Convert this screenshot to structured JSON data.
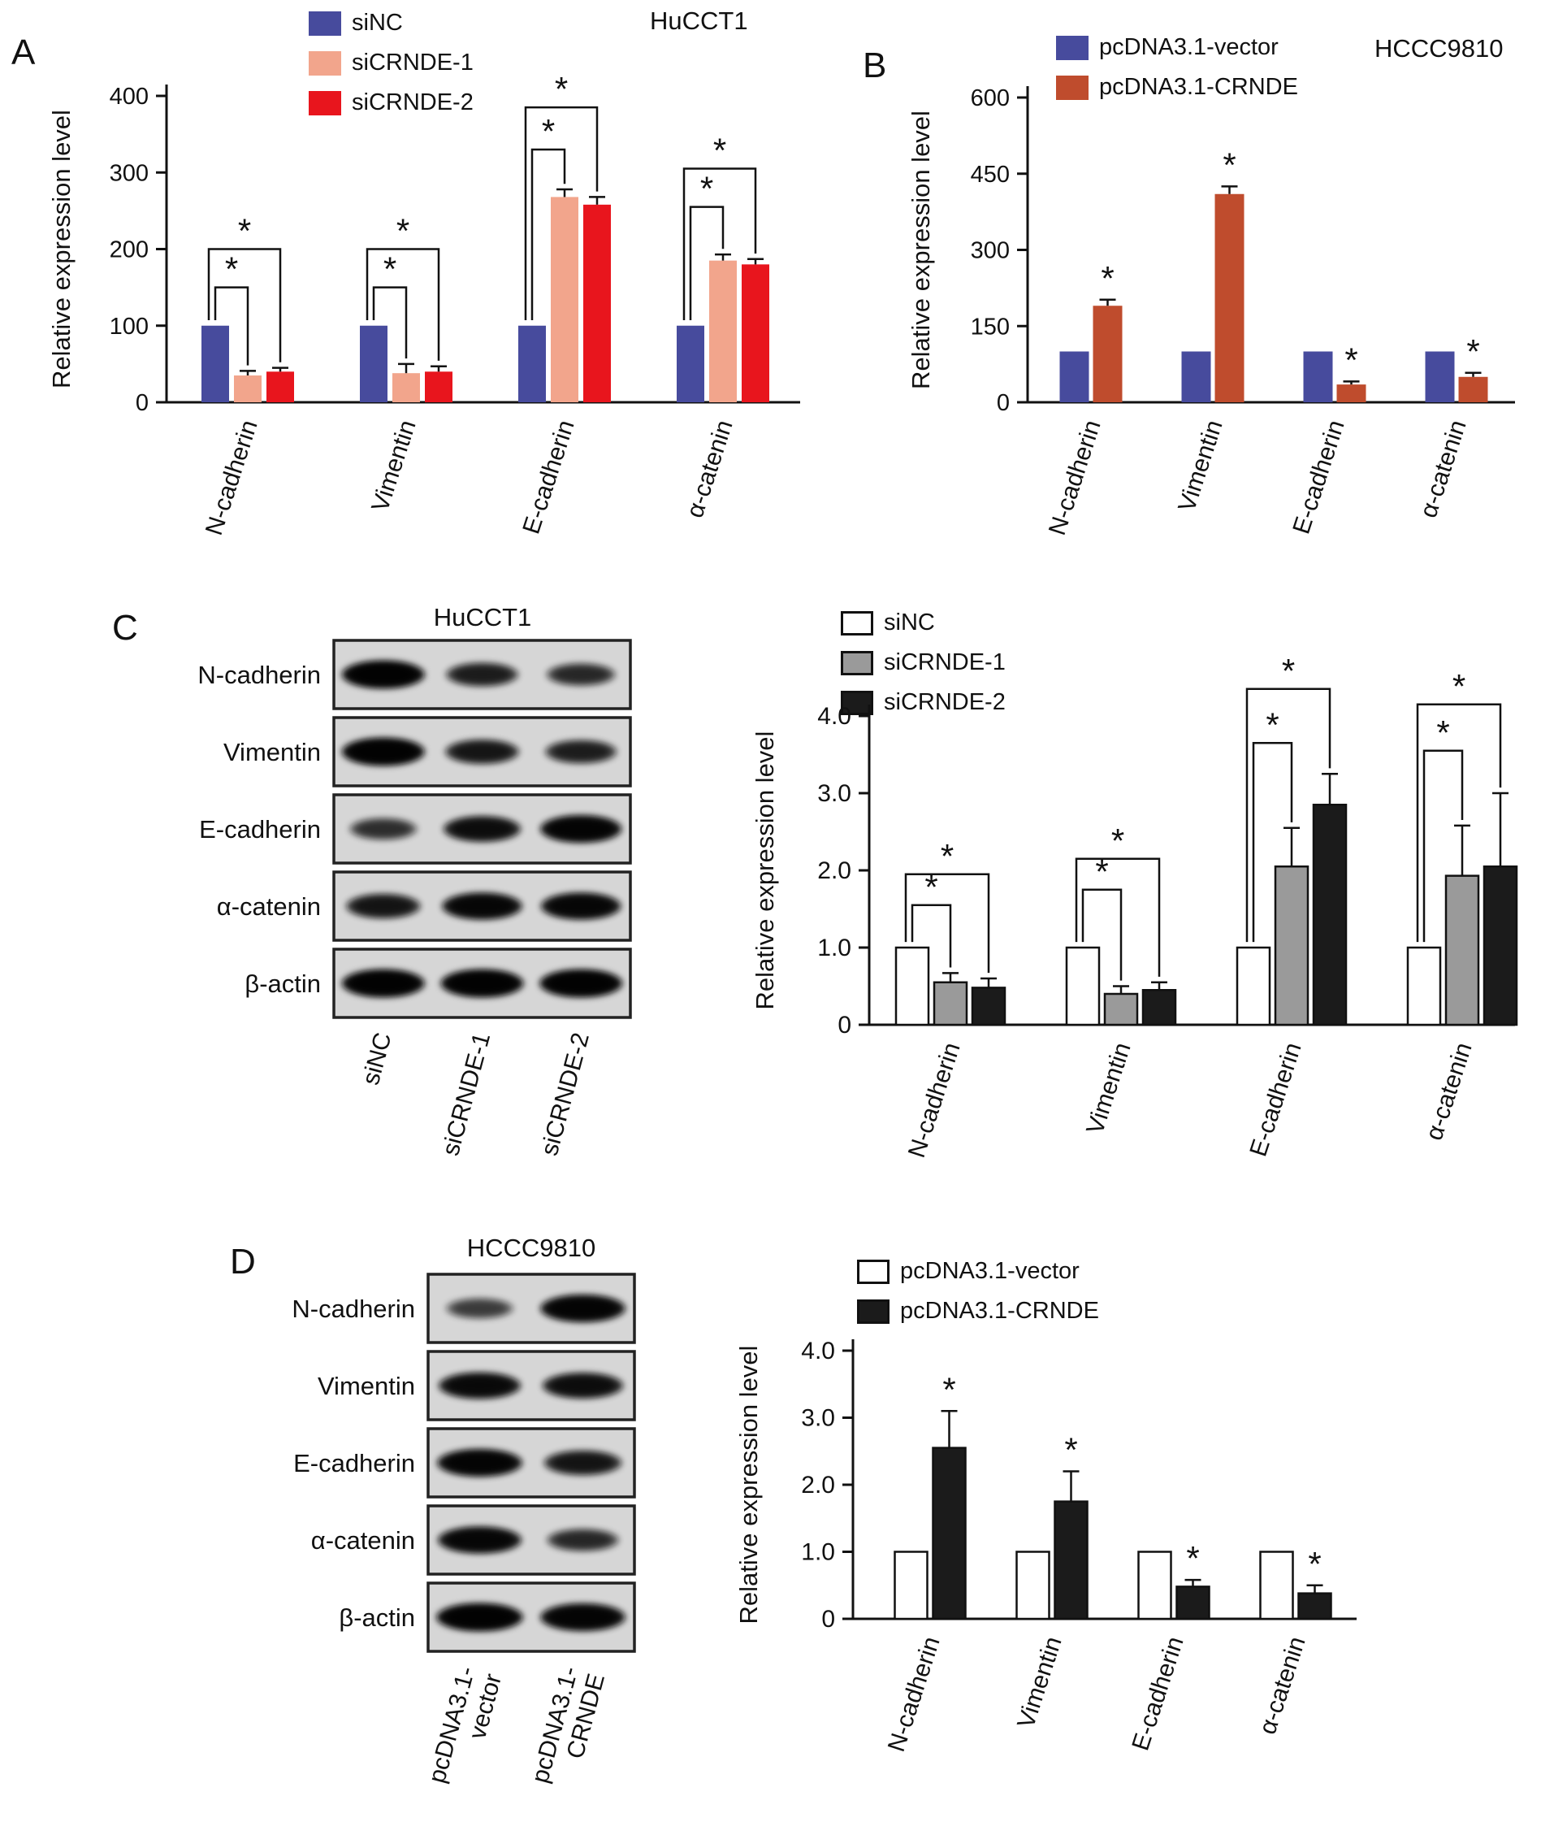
{
  "figure": {
    "panels": {
      "A": {
        "letter": "A"
      },
      "B": {
        "letter": "B"
      },
      "C": {
        "letter": "C"
      },
      "D": {
        "letter": "D"
      }
    }
  },
  "chart_data": [
    {
      "panel": "A",
      "type": "bar",
      "title": "HuCCT1",
      "ylabel": "Relative expression level",
      "ylim": [
        0,
        400
      ],
      "yticks": [
        0,
        100,
        200,
        300,
        400
      ],
      "yticklabels": [
        "0",
        "100",
        "200",
        "300",
        "400"
      ],
      "categories": [
        "N-cadherin",
        "Vimentin",
        "E-cadherin",
        "α-catenin"
      ],
      "grid": false,
      "legend_position": "top-left",
      "bar_outline": false,
      "series": [
        {
          "name": "siNC",
          "color": "#474b9d",
          "values": [
            100,
            100,
            100,
            100
          ],
          "errors": [
            0,
            0,
            0,
            0
          ]
        },
        {
          "name": "siCRNDE-1",
          "color": "#f2a58c",
          "values": [
            35,
            38,
            268,
            185
          ],
          "errors": [
            6,
            12,
            10,
            8
          ]
        },
        {
          "name": "siCRNDE-2",
          "color": "#e8151d",
          "values": [
            40,
            40,
            258,
            180
          ],
          "errors": [
            5,
            7,
            10,
            7
          ]
        }
      ],
      "significance": {
        "brackets": [
          {
            "category": 0,
            "from": 0,
            "to": 1,
            "y": 150,
            "label": "*"
          },
          {
            "category": 0,
            "from": 0,
            "to": 2,
            "y": 200,
            "label": "*"
          },
          {
            "category": 1,
            "from": 0,
            "to": 1,
            "y": 150,
            "label": "*"
          },
          {
            "category": 1,
            "from": 0,
            "to": 2,
            "y": 200,
            "label": "*"
          },
          {
            "category": 2,
            "from": 0,
            "to": 1,
            "y": 330,
            "label": "*"
          },
          {
            "category": 2,
            "from": 0,
            "to": 2,
            "y": 385,
            "label": "*"
          },
          {
            "category": 3,
            "from": 0,
            "to": 1,
            "y": 255,
            "label": "*"
          },
          {
            "category": 3,
            "from": 0,
            "to": 2,
            "y": 305,
            "label": "*"
          }
        ],
        "stars": []
      }
    },
    {
      "panel": "B",
      "type": "bar",
      "title": "HCCC9810",
      "ylabel": "Relative expression level",
      "ylim": [
        0,
        600
      ],
      "yticks": [
        0,
        150,
        300,
        450,
        600
      ],
      "yticklabels": [
        "0",
        "150",
        "300",
        "450",
        "600"
      ],
      "categories": [
        "N-cadherin",
        "Vimentin",
        "E-cadherin",
        "α-catenin"
      ],
      "grid": false,
      "legend_position": "top-left",
      "bar_outline": false,
      "series": [
        {
          "name": "pcDNA3.1-vector",
          "color": "#474b9d",
          "values": [
            100,
            100,
            100,
            100
          ],
          "errors": [
            0,
            0,
            0,
            0
          ]
        },
        {
          "name": "pcDNA3.1-CRNDE",
          "color": "#bf4c2d",
          "values": [
            190,
            410,
            35,
            50
          ],
          "errors": [
            12,
            15,
            6,
            8
          ]
        }
      ],
      "significance": {
        "brackets": [],
        "stars": [
          {
            "category": 0,
            "series": 1,
            "label": "*"
          },
          {
            "category": 1,
            "series": 1,
            "label": "*"
          },
          {
            "category": 2,
            "series": 1,
            "label": "*"
          },
          {
            "category": 3,
            "series": 1,
            "label": "*"
          }
        ]
      }
    },
    {
      "panel": "C",
      "type": "bar",
      "title": "HuCCT1",
      "ylabel": "Relative expression level",
      "ylim": [
        0,
        4
      ],
      "yticks": [
        0,
        1,
        2,
        3,
        4
      ],
      "yticklabels": [
        "0",
        "1.0",
        "2.0",
        "3.0",
        "4.0"
      ],
      "categories": [
        "N-cadherin",
        "Vimentin",
        "E-cadherin",
        "α-catenin"
      ],
      "grid": false,
      "legend_position": "top-left",
      "bar_outline": true,
      "series": [
        {
          "name": "siNC",
          "color": "#ffffff",
          "values": [
            1.0,
            1.0,
            1.0,
            1.0
          ],
          "errors": [
            0,
            0,
            0,
            0
          ]
        },
        {
          "name": "siCRNDE-1",
          "color": "#9a9a9a",
          "values": [
            0.55,
            0.4,
            2.05,
            1.93
          ],
          "errors": [
            0.12,
            0.1,
            0.5,
            0.65
          ]
        },
        {
          "name": "siCRNDE-2",
          "color": "#1b1b1b",
          "values": [
            0.48,
            0.45,
            2.85,
            2.05
          ],
          "errors": [
            0.12,
            0.1,
            0.4,
            0.95
          ]
        }
      ],
      "significance": {
        "brackets": [
          {
            "category": 0,
            "from": 0,
            "to": 1,
            "y": 1.55,
            "label": "*"
          },
          {
            "category": 0,
            "from": 0,
            "to": 2,
            "y": 1.95,
            "label": "*"
          },
          {
            "category": 1,
            "from": 0,
            "to": 1,
            "y": 1.75,
            "label": "*"
          },
          {
            "category": 1,
            "from": 0,
            "to": 2,
            "y": 2.15,
            "label": "*"
          },
          {
            "category": 2,
            "from": 0,
            "to": 1,
            "y": 3.65,
            "label": "*"
          },
          {
            "category": 2,
            "from": 0,
            "to": 2,
            "y": 4.35,
            "label": "*"
          },
          {
            "category": 3,
            "from": 0,
            "to": 1,
            "y": 3.55,
            "label": "*"
          },
          {
            "category": 3,
            "from": 0,
            "to": 2,
            "y": 4.15,
            "label": "*"
          }
        ],
        "stars": []
      }
    },
    {
      "panel": "D",
      "type": "bar",
      "title": "HCCC9810",
      "ylabel": "Relative expression level",
      "ylim": [
        0,
        4
      ],
      "yticks": [
        0,
        1,
        2,
        3,
        4
      ],
      "yticklabels": [
        "0",
        "1.0",
        "2.0",
        "3.0",
        "4.0"
      ],
      "categories": [
        "N-cadherin",
        "Vimentin",
        "E-cadherin",
        "α-catenin"
      ],
      "grid": false,
      "legend_position": "top-left",
      "bar_outline": true,
      "series": [
        {
          "name": "pcDNA3.1-vector",
          "color": "#ffffff",
          "values": [
            1.0,
            1.0,
            1.0,
            1.0
          ],
          "errors": [
            0,
            0,
            0,
            0
          ]
        },
        {
          "name": "pcDNA3.1-CRNDE",
          "color": "#1b1b1b",
          "values": [
            2.55,
            1.75,
            0.48,
            0.38
          ],
          "errors": [
            0.55,
            0.45,
            0.1,
            0.12
          ]
        }
      ],
      "significance": {
        "brackets": [],
        "stars": [
          {
            "category": 0,
            "series": 1,
            "label": "*"
          },
          {
            "category": 1,
            "series": 1,
            "label": "*"
          },
          {
            "category": 2,
            "series": 1,
            "label": "*"
          },
          {
            "category": 3,
            "series": 1,
            "label": "*"
          }
        ]
      }
    }
  ],
  "blots": [
    {
      "panel": "C",
      "title": "HuCCT1",
      "rows": [
        {
          "label": "N-cadherin",
          "bands": [
            1.0,
            0.62,
            0.5
          ]
        },
        {
          "label": "Vimentin",
          "bands": [
            1.0,
            0.68,
            0.6
          ]
        },
        {
          "label": "E-cadherin",
          "bands": [
            0.45,
            0.8,
            0.95
          ]
        },
        {
          "label": "α-catenin",
          "bands": [
            0.7,
            0.9,
            0.9
          ]
        },
        {
          "label": "β-actin",
          "bands": [
            1.0,
            1.0,
            1.0
          ]
        }
      ],
      "lanes": [
        [
          "siNC"
        ],
        [
          "siCRNDE-1"
        ],
        [
          "siCRNDE-2"
        ]
      ]
    },
    {
      "panel": "D",
      "title": "HCCC9810",
      "rows": [
        {
          "label": "N-cadherin",
          "bands": [
            0.35,
            0.95
          ]
        },
        {
          "label": "Vimentin",
          "bands": [
            0.85,
            0.8
          ]
        },
        {
          "label": "E-cadherin",
          "bands": [
            0.95,
            0.7
          ]
        },
        {
          "label": "α-catenin",
          "bands": [
            0.9,
            0.5
          ]
        },
        {
          "label": "β-actin",
          "bands": [
            1.0,
            0.95
          ]
        }
      ],
      "lanes": [
        [
          "pcDNA3.1-",
          "vector"
        ],
        [
          "pcDNA3.1-",
          "CRNDE"
        ]
      ]
    }
  ]
}
